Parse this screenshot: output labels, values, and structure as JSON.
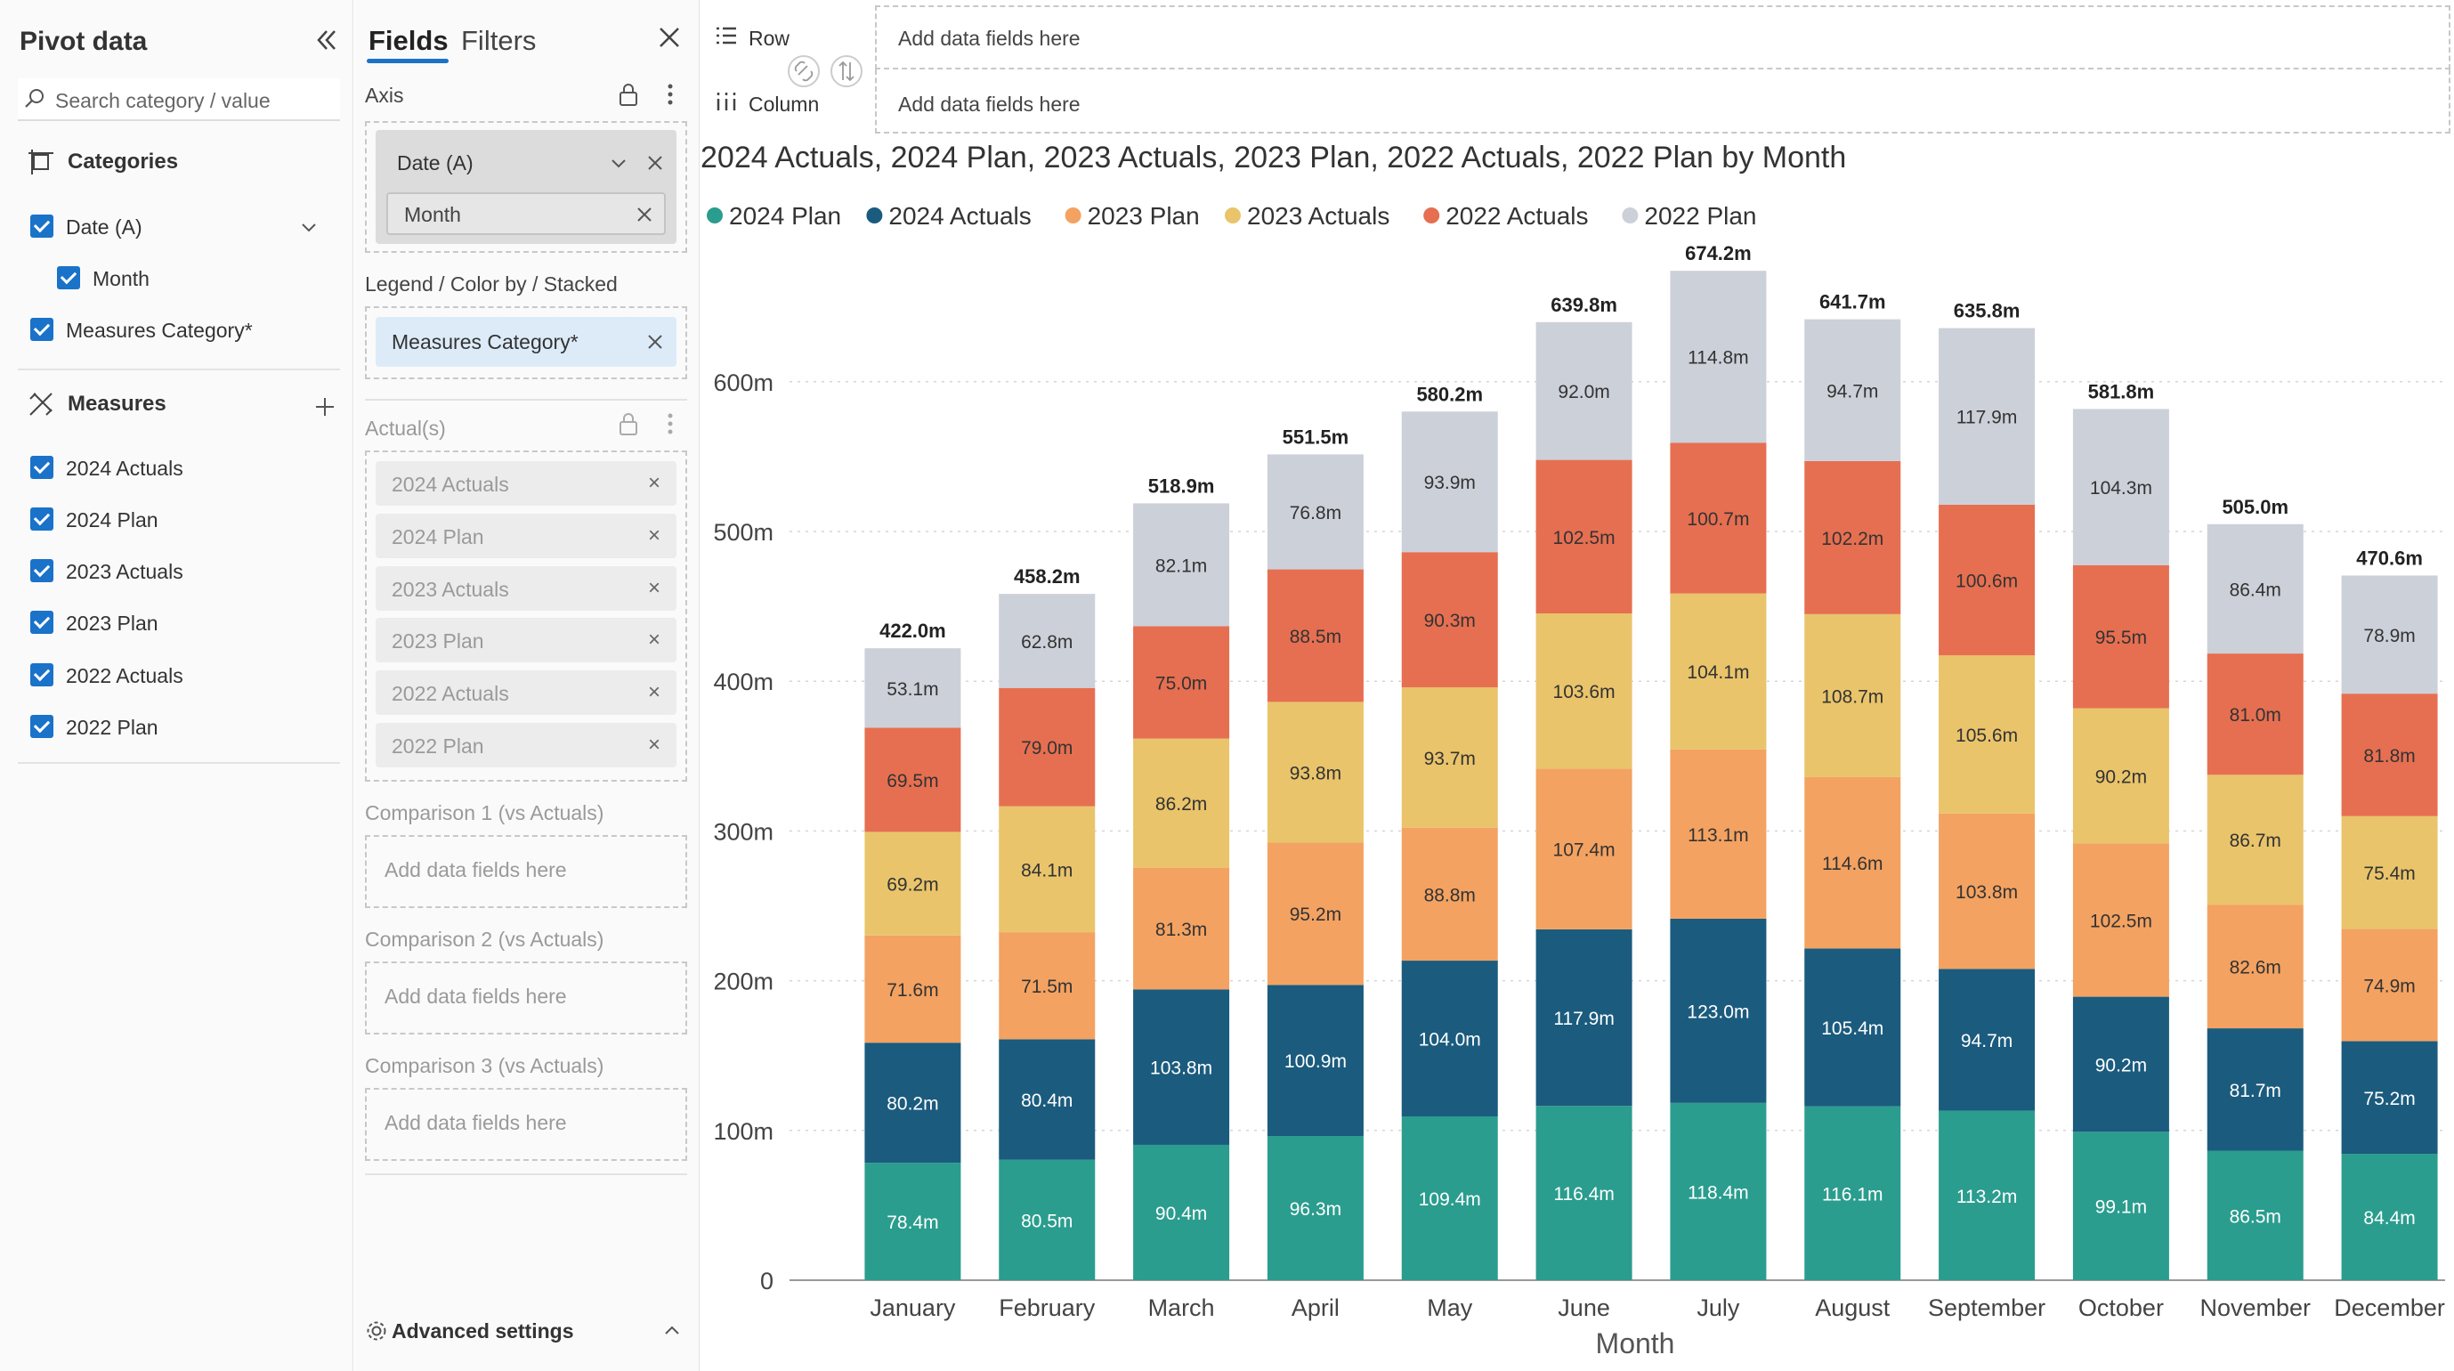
{
  "left_panel": {
    "title": "Pivot data",
    "search_placeholder": "Search category / value",
    "categories_title": "Categories",
    "categories": [
      {
        "label": "Date (A)",
        "checked": true
      },
      {
        "label": "Month",
        "checked": true
      },
      {
        "label": "Measures Category*",
        "checked": true
      }
    ],
    "measures_title": "Measures",
    "measures": [
      {
        "label": "2024 Actuals",
        "checked": true
      },
      {
        "label": "2024 Plan",
        "checked": true
      },
      {
        "label": "2023 Actuals",
        "checked": true
      },
      {
        "label": "2023 Plan",
        "checked": true
      },
      {
        "label": "2022 Actuals",
        "checked": true
      },
      {
        "label": "2022 Plan",
        "checked": true
      }
    ]
  },
  "mid_panel": {
    "tabs": [
      "Fields",
      "Filters"
    ],
    "axis_label": "Axis",
    "axis_field": "Date (A)",
    "axis_subfield": "Month",
    "legend_label": "Legend / Color by / Stacked",
    "legend_field": "Measures Category*",
    "actuals_label": "Actual(s)",
    "actual_fields": [
      "2024 Actuals",
      "2024 Plan",
      "2023 Actuals",
      "2023 Plan",
      "2022 Actuals",
      "2022 Plan"
    ],
    "comparisons": [
      {
        "label": "Comparison 1 (vs Actuals)",
        "placeholder": "Add data fields here"
      },
      {
        "label": "Comparison 2 (vs Actuals)",
        "placeholder": "Add data fields here"
      },
      {
        "label": "Comparison 3 (vs Actuals)",
        "placeholder": "Add data fields here"
      }
    ],
    "advanced_settings": "Advanced settings"
  },
  "toolbar": {
    "row_label": "Row",
    "column_label": "Column",
    "row_placeholder": "Add data fields here",
    "column_placeholder": "Add data fields here"
  },
  "chart_data": {
    "type": "bar",
    "stacked": true,
    "title": "2024 Actuals, 2024 Plan, 2023 Actuals, 2023 Plan, 2022 Actuals, 2022 Plan by Month",
    "xlabel": "Month",
    "ylabel": "",
    "ylim": [
      0,
      680
    ],
    "yticks": [
      0,
      100,
      200,
      300,
      400,
      500,
      600
    ],
    "ytick_labels": [
      "0",
      "100m",
      "200m",
      "300m",
      "400m",
      "500m",
      "600m"
    ],
    "grid": true,
    "legend_position": "top-left",
    "categories": [
      "January",
      "February",
      "March",
      "April",
      "May",
      "June",
      "July",
      "August",
      "September",
      "October",
      "November",
      "December"
    ],
    "legend": [
      {
        "name": "2024 Plan",
        "color": "#2a9d8f"
      },
      {
        "name": "2024 Actuals",
        "color": "#1a5b7e"
      },
      {
        "name": "2023 Plan",
        "color": "#f4a261"
      },
      {
        "name": "2023 Actuals",
        "color": "#e9c46a"
      },
      {
        "name": "2022 Actuals",
        "color": "#e76f51"
      },
      {
        "name": "2022 Plan",
        "color": "#ccd0d9"
      }
    ],
    "series": [
      {
        "name": "2024 Plan",
        "color": "#2a9d8f",
        "label_color": "#ffffff",
        "values": [
          78.4,
          80.5,
          90.4,
          96.3,
          109.4,
          116.4,
          118.4,
          116.1,
          113.2,
          99.1,
          86.5,
          84.4
        ],
        "labels": [
          "78.4m",
          "80.5m",
          "90.4m",
          "96.3m",
          "109.4m",
          "116.4m",
          "118.4m",
          "116.1m",
          "113.2m",
          "99.1m",
          "86.5m",
          "84.4m"
        ]
      },
      {
        "name": "2024 Actuals",
        "color": "#1a5b7e",
        "label_color": "#ffffff",
        "values": [
          80.2,
          80.4,
          103.8,
          100.9,
          104.0,
          117.9,
          123.0,
          105.4,
          94.7,
          90.2,
          81.7,
          75.2
        ],
        "labels": [
          "80.2m",
          "80.4m",
          "103.8m",
          "100.9m",
          "104.0m",
          "117.9m",
          "123.0m",
          "105.4m",
          "94.7m",
          "90.2m",
          "81.7m",
          "75.2m"
        ]
      },
      {
        "name": "2023 Plan",
        "color": "#f4a261",
        "label_color": "#333333",
        "values": [
          71.6,
          71.5,
          81.3,
          95.2,
          88.8,
          107.4,
          113.1,
          114.6,
          103.8,
          102.5,
          82.6,
          74.9
        ],
        "labels": [
          "71.6m",
          "71.5m",
          "81.3m",
          "95.2m",
          "88.8m",
          "107.4m",
          "113.1m",
          "114.6m",
          "103.8m",
          "102.5m",
          "82.6m",
          "74.9m"
        ]
      },
      {
        "name": "2023 Actuals",
        "color": "#e9c46a",
        "label_color": "#333333",
        "values": [
          69.2,
          84.1,
          86.2,
          93.8,
          93.7,
          103.6,
          104.1,
          108.7,
          105.6,
          90.2,
          86.7,
          75.4
        ],
        "labels": [
          "69.2m",
          "84.1m",
          "86.2m",
          "93.8m",
          "93.7m",
          "103.6m",
          "104.1m",
          "108.7m",
          "105.6m",
          "90.2m",
          "86.7m",
          "75.4m"
        ]
      },
      {
        "name": "2022 Actuals",
        "color": "#e76f51",
        "label_color": "#333333",
        "values": [
          69.5,
          79.0,
          75.0,
          88.5,
          90.3,
          102.5,
          100.7,
          102.2,
          100.6,
          95.5,
          81.0,
          81.8
        ],
        "labels": [
          "69.5m",
          "79.0m",
          "75.0m",
          "88.5m",
          "90.3m",
          "102.5m",
          "100.7m",
          "102.2m",
          "100.6m",
          "95.5m",
          "81.0m",
          "81.8m"
        ]
      },
      {
        "name": "2022 Plan",
        "color": "#ccd0d9",
        "label_color": "#333333",
        "values": [
          53.1,
          62.8,
          82.1,
          76.8,
          93.9,
          92.0,
          114.8,
          94.7,
          117.9,
          104.3,
          86.4,
          78.9
        ],
        "labels": [
          "53.1m",
          "62.8m",
          "82.1m",
          "76.8m",
          "93.9m",
          "92.0m",
          "114.8m",
          "94.7m",
          "117.9m",
          "104.3m",
          "86.4m",
          "78.9m"
        ]
      }
    ],
    "totals": [
      "422.0m",
      "458.2m",
      "518.9m",
      "551.5m",
      "580.2m",
      "639.8m",
      "674.2m",
      "641.7m",
      "635.8m",
      "581.8m",
      "505.0m",
      "470.6m"
    ]
  }
}
